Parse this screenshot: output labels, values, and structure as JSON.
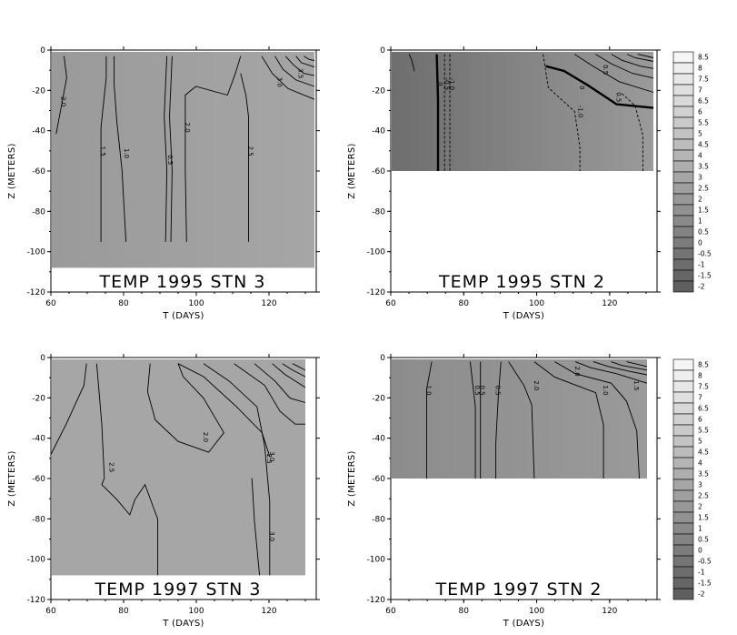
{
  "colors": {
    "field_cold": "#6e6e6e",
    "field_cool": "#8c8c8c",
    "field_mid": "#9a9a9a",
    "field_warm": "#a6a6a6",
    "contour": "#000000",
    "frame": "#000000"
  },
  "chart_data": [
    {
      "type": "heatmap",
      "title": "TEMP 1995 STN 3",
      "xlabel": "T (DAYS)",
      "ylabel": "Z (METERS)",
      "xlim": [
        60,
        133
      ],
      "ylim": [
        -120,
        0
      ],
      "data_depth_min": -108,
      "x_ticks": [
        "60",
        "80",
        "100",
        "120"
      ],
      "y_ticks": [
        "0",
        "-20",
        "-40",
        "-60",
        "-80",
        "-100",
        "-120"
      ],
      "contour_labels": [
        "2.0",
        "1.5",
        "1.0",
        "0.5",
        "2.5",
        "2.0",
        "3.0",
        "3.5"
      ]
    },
    {
      "type": "heatmap",
      "title": "TEMP 1995 STN 2",
      "xlabel": "T (DAYS)",
      "ylabel": "Z (METERS)",
      "xlim": [
        60,
        133
      ],
      "ylim": [
        -120,
        0
      ],
      "data_depth_min": -60,
      "x_ticks": [
        "60",
        "80",
        "100",
        "120"
      ],
      "y_ticks": [
        "0",
        "-20",
        "-40",
        "-60",
        "-80",
        "-100",
        "-120"
      ],
      "contour_labels": [
        "0",
        "-0.5",
        "-1.0",
        "-1.0",
        "0",
        "0.5",
        "0.5"
      ]
    },
    {
      "type": "heatmap",
      "title": "TEMP 1997 STN 3",
      "xlabel": "T (DAYS)",
      "ylabel": "Z (METERS)",
      "xlim": [
        60,
        133
      ],
      "ylim": [
        -120,
        0
      ],
      "data_depth_min": -108,
      "x_ticks": [
        "60",
        "80",
        "100",
        "120"
      ],
      "y_ticks": [
        "0",
        "-20",
        "-40",
        "-60",
        "-80",
        "-100",
        "-120"
      ],
      "contour_labels": [
        "2.0",
        "2.5",
        "2.5",
        "3.0",
        "3.0"
      ]
    },
    {
      "type": "heatmap",
      "title": "TEMP 1997 STN 2",
      "xlabel": "T (DAYS)",
      "ylabel": "Z (METERS)",
      "xlim": [
        60,
        133
      ],
      "ylim": [
        -120,
        0
      ],
      "data_depth_min": -60,
      "x_ticks": [
        "60",
        "80",
        "100",
        "120"
      ],
      "y_ticks": [
        "0",
        "-20",
        "-40",
        "-60",
        "-80",
        "-100",
        "-120"
      ],
      "contour_labels": [
        "1.0",
        "0.5",
        "0.5",
        "0.5",
        "2.0",
        "1.0",
        "2.0",
        "1.5"
      ]
    }
  ],
  "colorbars": [
    {
      "labels": [
        "8.5",
        "8",
        "7.5",
        "7",
        "6.5",
        "6",
        "5.5",
        "5",
        "4.5",
        "4",
        "3.5",
        "3",
        "2.5",
        "2",
        "1.5",
        "1",
        "0.5",
        "0",
        "-0.5",
        "-1",
        "-1.5",
        "-2"
      ]
    },
    {
      "labels": [
        "8.5",
        "8",
        "7.5",
        "7",
        "6.5",
        "6",
        "5.5",
        "5",
        "4.5",
        "4",
        "3.5",
        "3",
        "2.5",
        "2",
        "1.5",
        "1",
        "0.5",
        "0",
        "-0.5",
        "-1",
        "-1.5",
        "-2"
      ]
    }
  ]
}
